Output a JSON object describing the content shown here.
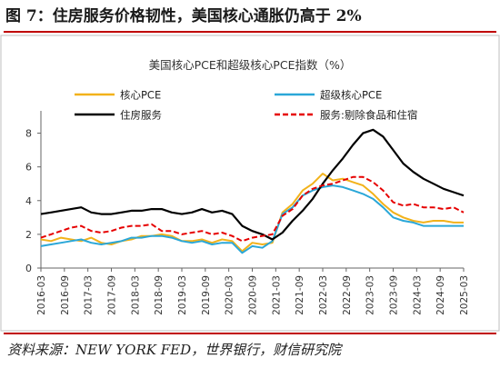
{
  "figure": {
    "title": "图 7：住房服务价格韧性，美国核心通胀仍高于 2%",
    "source": "资料来源：NEW YORK FED，世界银行，财信研究院"
  },
  "chart_data": {
    "type": "line",
    "title": "美国核心PCE和超级核心PCE指数（%）",
    "ylim": [
      0,
      9
    ],
    "yticks": [
      0,
      2,
      4,
      6,
      8
    ],
    "xticks": [
      "2016-03",
      "2016-09",
      "2017-03",
      "2017-09",
      "2018-03",
      "2018-09",
      "2019-03",
      "2019-09",
      "2020-03",
      "2020-09",
      "2021-03",
      "2021-09",
      "2022-03",
      "2022-09",
      "2023-03",
      "2023-09",
      "2024-03",
      "2024-09",
      "2025-03"
    ],
    "legend_position": "top",
    "grid": false,
    "series": [
      {
        "name": "核心PCE",
        "color": "#f2b21a",
        "dash": "solid",
        "values": [
          1.7,
          1.6,
          1.8,
          1.7,
          1.6,
          1.8,
          1.5,
          1.4,
          1.6,
          1.7,
          1.9,
          1.9,
          2.0,
          1.9,
          1.6,
          1.6,
          1.7,
          1.5,
          1.7,
          1.6,
          1.0,
          1.5,
          1.4,
          1.5,
          3.3,
          3.8,
          4.6,
          5.0,
          5.6,
          5.2,
          5.3,
          5.1,
          4.9,
          4.4,
          3.8,
          3.3,
          3.0,
          2.8,
          2.7,
          2.8,
          2.8,
          2.7,
          2.7
        ]
      },
      {
        "name": "超级核心PCE",
        "color": "#2aa7d8",
        "dash": "solid",
        "values": [
          1.3,
          1.4,
          1.5,
          1.6,
          1.7,
          1.5,
          1.4,
          1.5,
          1.6,
          1.8,
          1.8,
          1.9,
          1.9,
          1.8,
          1.6,
          1.5,
          1.6,
          1.4,
          1.5,
          1.5,
          0.9,
          1.3,
          1.2,
          1.6,
          3.2,
          3.6,
          4.3,
          4.6,
          4.8,
          4.9,
          4.8,
          4.6,
          4.4,
          4.1,
          3.6,
          3.0,
          2.8,
          2.7,
          2.5,
          2.5,
          2.5,
          2.5,
          2.5
        ]
      },
      {
        "name": "住房服务",
        "color": "#000000",
        "dash": "solid",
        "values": [
          3.2,
          3.3,
          3.4,
          3.5,
          3.6,
          3.3,
          3.2,
          3.2,
          3.3,
          3.4,
          3.4,
          3.5,
          3.5,
          3.3,
          3.2,
          3.3,
          3.5,
          3.3,
          3.4,
          3.2,
          2.5,
          2.2,
          2.0,
          1.7,
          2.1,
          2.8,
          3.4,
          4.1,
          5.0,
          5.8,
          6.5,
          7.3,
          8.0,
          8.2,
          7.8,
          7.0,
          6.2,
          5.7,
          5.3,
          5.0,
          4.7,
          4.5,
          4.3
        ]
      },
      {
        "name": "服务:剔除食品和住宿",
        "color": "#e60000",
        "dash": "dashed",
        "values": [
          1.8,
          2.0,
          2.2,
          2.4,
          2.5,
          2.2,
          2.1,
          2.2,
          2.4,
          2.5,
          2.5,
          2.6,
          2.2,
          2.2,
          2.0,
          2.1,
          2.2,
          2.0,
          2.1,
          1.9,
          1.6,
          1.8,
          1.9,
          2.0,
          3.1,
          3.5,
          4.3,
          4.7,
          4.9,
          5.0,
          5.2,
          5.4,
          5.4,
          5.1,
          4.6,
          3.9,
          3.7,
          3.8,
          3.6,
          3.6,
          3.5,
          3.6,
          3.3
        ]
      }
    ]
  }
}
